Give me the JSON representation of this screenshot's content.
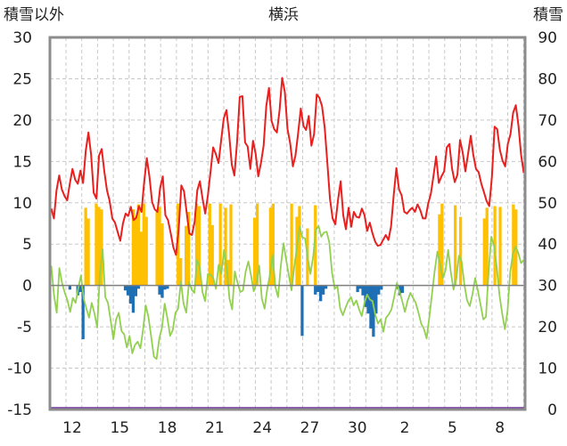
{
  "chart_data": {
    "type": "bar+line",
    "title": "横浜",
    "ylabel_left": "積雪以外",
    "ylabel_right": "積雪",
    "y_left": {
      "min": -15,
      "max": 30,
      "ticks": [
        30,
        25,
        20,
        15,
        10,
        5,
        0,
        -5,
        -10,
        -15
      ]
    },
    "y_right": {
      "min": 0,
      "max": 90,
      "ticks": [
        90,
        80,
        70,
        60,
        50,
        40,
        30,
        20,
        10,
        0
      ]
    },
    "x_labels": [
      "12",
      "15",
      "18",
      "21",
      "24",
      "27",
      "30",
      "2",
      "5",
      "8"
    ],
    "grid": true,
    "colors": {
      "max_temp": "#e8201f",
      "min_temp": "#92d050",
      "sunshine": "#ffc000",
      "precip": "#1f6fb5",
      "snow": "#7030a0",
      "frame": "#8c8c8c"
    },
    "series": [
      {
        "color": "#e8201f",
        "values": [
          9.3,
          8.1,
          11.5,
          13.3,
          11.6,
          10.8,
          10.3,
          12.3,
          14.1,
          12.8,
          12.3,
          13.9,
          12.4,
          16.3,
          18.5,
          15.8,
          11.2,
          10.5,
          15.7,
          16.5,
          13.8,
          11.5,
          10.2,
          8.1,
          7.6,
          6.5,
          5.4,
          7.5,
          8.7,
          8.4,
          9.5,
          7.9,
          8.2,
          9.6,
          8.9,
          12.5,
          15.4,
          13.1,
          10.1,
          9.2,
          8.9,
          11.8,
          13.2,
          8.5,
          7.9,
          6.3,
          4.6,
          3.7,
          6.8,
          12.1,
          11.4,
          8.9,
          6.3,
          6.1,
          7.7,
          11.5,
          12.6,
          10.5,
          8.7,
          10.9,
          13.7,
          16.7,
          15.9,
          14.8,
          17.6,
          20.2,
          21.2,
          18.3,
          14.6,
          13.3,
          17.3,
          22.8,
          22.9,
          17.3,
          16.8,
          14.1,
          17.5,
          15.9,
          13.2,
          14.8,
          16.9,
          21.7,
          23.9,
          19.9,
          18.9,
          18.5,
          21.2,
          25.1,
          23.4,
          18.9,
          17.2,
          14.4,
          15.7,
          18.4,
          21.4,
          19.3,
          18.8,
          20.5,
          16.9,
          18.3,
          23.1,
          22.7,
          21.7,
          19.1,
          14.8,
          10.5,
          8.1,
          7.4,
          10.3,
          12.6,
          8.5,
          6.8,
          9.4,
          7.1,
          8.9,
          8.3,
          8.2,
          9.3,
          8.5,
          6.6,
          7.6,
          6.3,
          5.3,
          4.8,
          4.9,
          5.5,
          6.1,
          5.5,
          7.1,
          10.9,
          14.2,
          11.6,
          10.9,
          8.9,
          8.7,
          9.1,
          9.4,
          8.9,
          9.8,
          9.1,
          8.1,
          8.1,
          9.9,
          11.1,
          13.3,
          15.6,
          12.4,
          13.2,
          13.8,
          16.7,
          17.1,
          14.1,
          12.5,
          13.4,
          17.6,
          16.1,
          13.8,
          15.9,
          18.1,
          15.8,
          14.1,
          13.7,
          12.3,
          11.3,
          10.2,
          9.6,
          13.2,
          19.2,
          18.9,
          16.4,
          15.1,
          14.4,
          17.1,
          18.3,
          20.9,
          21.8,
          19.3,
          15.8,
          13.6
        ]
      },
      {
        "color": "#92d050",
        "values": [
          2.4,
          -1.1,
          -3.3,
          2.1,
          0.3,
          -0.9,
          -1.8,
          -3.2,
          -1.5,
          -2.1,
          -0.3,
          1.2,
          -1.6,
          -2.8,
          -3.9,
          -2.1,
          -3.4,
          -5.1,
          1.3,
          4.4,
          -1.4,
          -2.1,
          -4.2,
          -6.5,
          -4.1,
          -3.3,
          -5.5,
          -5.9,
          -7.5,
          -6.1,
          -8.2,
          -7.2,
          -6.8,
          -7.6,
          -5.3,
          -2.4,
          -3.8,
          -6.2,
          -8.6,
          -8.9,
          -6.4,
          -5.1,
          -2.2,
          -3.9,
          -6.1,
          -5.4,
          -3.3,
          -2.8,
          0.5,
          -2.2,
          -3.3,
          0.4,
          -0.5,
          -0.9,
          3.1,
          2.2,
          -0.8,
          -1.9,
          1.4,
          1.3,
          0.9,
          -0.4,
          2.5,
          1.4,
          4.3,
          2.1,
          -1.6,
          -2.9,
          1.7,
          0.3,
          -0.8,
          -0.6,
          1.7,
          2.9,
          1.2,
          -0.7,
          0.3,
          2.4,
          -1.6,
          -2.8,
          -0.4,
          1.3,
          3.7,
          -0.2,
          -1.4,
          2.3,
          5.1,
          3.1,
          1.2,
          -0.6,
          2.3,
          4.6,
          7.1,
          5.8,
          5.7,
          3.3,
          1.4,
          3.5,
          6.7,
          7.2,
          5.9,
          6.4,
          6.5,
          5.2,
          1.5,
          -0.4,
          -0.1,
          -2.8,
          -3.6,
          -2.7,
          -1.9,
          -1.4,
          -2.4,
          -1.8,
          -2.9,
          -3.7,
          -2.1,
          -1.1,
          -1.7,
          -1.9,
          -3.5,
          -4.6,
          -4.1,
          -5.6,
          -3.9,
          -3.5,
          -2.9,
          -1.4,
          0.3,
          -0.8,
          -1.9,
          -3.2,
          -1.8,
          -0.9,
          -1.5,
          -2.1,
          -3.3,
          -4.6,
          -5.2,
          -6.4,
          -3.9,
          -1.1,
          1.7,
          4.1,
          2.6,
          0.9,
          1.8,
          4.3,
          1.6,
          -0.5,
          0.8,
          3.6,
          2.9,
          0.1,
          -1.8,
          -2.5,
          -1.1,
          0.9,
          -0.6,
          -2.3,
          -4.1,
          -3.8,
          1.7,
          5.9,
          4.8,
          2.2,
          -1.1,
          -3.4,
          -5.3,
          -3.1,
          1.6,
          3.9,
          4.7,
          3.9,
          2.7,
          3.1
        ]
      },
      {
        "color": "#ffc000",
        "values": [
          0,
          0,
          0,
          0,
          0,
          0,
          0,
          0,
          0,
          0,
          0,
          0,
          0,
          9.4,
          8.1,
          0,
          0,
          9.9,
          9.5,
          9.2,
          0,
          0,
          0,
          0,
          0,
          0,
          0,
          0,
          0,
          0,
          0,
          9.2,
          8.1,
          9.8,
          6.5,
          9.9,
          8.3,
          0,
          0,
          0,
          8.9,
          9.5,
          7.5,
          0,
          0,
          0,
          0,
          0,
          9.9,
          3.3,
          0,
          7.2,
          8.9,
          0,
          0,
          9.9,
          9.6,
          0,
          0,
          0,
          9.9,
          7.3,
          0,
          0,
          9.9,
          0,
          9.4,
          3.1,
          9.8,
          0,
          0,
          0,
          0,
          0,
          0,
          0,
          0,
          8.2,
          9.9,
          0,
          0,
          0,
          0,
          9.4,
          9.9,
          0,
          0,
          0,
          0,
          0,
          0,
          9.9,
          0,
          8.3,
          9.6,
          0,
          0,
          6.9,
          0,
          0,
          9.7,
          0,
          0,
          0,
          0,
          0,
          0,
          0,
          0,
          0,
          0,
          0,
          0,
          0,
          0,
          0,
          0,
          0,
          0,
          0,
          0,
          0,
          0,
          0,
          0,
          0,
          0,
          0,
          0,
          0,
          0,
          0,
          0,
          0,
          0,
          0,
          0,
          0,
          0,
          0,
          0,
          0,
          0,
          0,
          0,
          0,
          0,
          8.6,
          9.9,
          0,
          0,
          0,
          0,
          9.7,
          0,
          8.3,
          0,
          0,
          0,
          0,
          0,
          0,
          0,
          0,
          8.1,
          9.4,
          0,
          0,
          9.6,
          0,
          9.5,
          0,
          0,
          0,
          0,
          9.8,
          9.2,
          0,
          0,
          0
        ]
      },
      {
        "color": "#1f6fb5",
        "values": [
          0,
          0,
          0,
          0,
          0,
          0,
          0,
          -0.5,
          0,
          0,
          -1.2,
          -0.8,
          -6.5,
          0,
          0,
          0,
          0,
          0,
          0,
          0,
          0,
          0,
          0,
          0,
          0,
          0,
          0,
          0,
          -0.6,
          -1.2,
          -2.2,
          -3.3,
          -1.3,
          -0.4,
          0,
          0,
          0,
          0,
          0,
          0,
          0,
          -1.1,
          -1.5,
          -0.5,
          -0.4,
          0,
          0,
          0,
          0,
          0,
          0,
          0,
          0,
          0,
          0,
          0,
          0,
          0,
          0,
          0,
          0,
          0,
          0,
          0,
          0,
          0,
          0,
          0,
          0,
          0,
          0,
          0,
          0,
          0,
          0,
          0,
          0,
          0,
          0,
          0,
          0,
          0,
          0,
          0,
          0,
          0,
          0,
          0,
          0,
          0,
          0,
          0,
          0,
          0,
          0,
          -6.1,
          0,
          0,
          0,
          0,
          -1.1,
          -0.8,
          -1.9,
          -1.1,
          -0.4,
          0,
          0,
          0,
          0,
          0,
          0,
          0,
          0,
          0,
          0,
          0,
          -0.8,
          -0.4,
          -1.2,
          -2.6,
          -3.4,
          -5.2,
          -6.2,
          -3.4,
          -1.1,
          -0.5,
          0,
          0,
          0,
          0,
          0,
          -0.4,
          -1.2,
          -0.9,
          0,
          0,
          0,
          0,
          0,
          0,
          0,
          0,
          0,
          0,
          0,
          0,
          0,
          0,
          0,
          0,
          0,
          0,
          0,
          0,
          0,
          0,
          0,
          0,
          0,
          0,
          0,
          0,
          0,
          0,
          0,
          0,
          0,
          0,
          0,
          0,
          0,
          0,
          0,
          0,
          0,
          0,
          0,
          0,
          0,
          0
        ]
      },
      {
        "color": "#7030a0",
        "values": [
          0,
          0,
          0,
          0,
          0,
          0,
          0,
          0,
          0,
          0
        ]
      }
    ]
  }
}
